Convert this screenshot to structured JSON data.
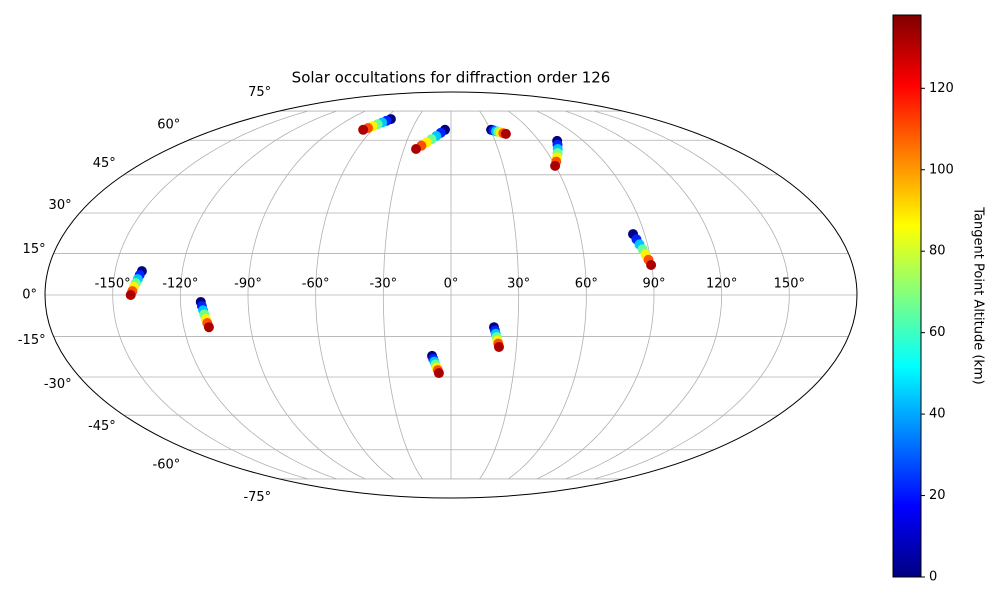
{
  "chart_data": {
    "type": "scatter",
    "projection": "mollweide",
    "title": "Solar occultations for diffraction order 126",
    "colorbar_label": "Tangent Point Altitude (km)",
    "colormap": "jet",
    "grid": true,
    "clim": [
      0,
      138
    ],
    "cticks": [
      0,
      20,
      40,
      60,
      80,
      100,
      120
    ],
    "xticks": [
      {
        "value": -150,
        "label": "-150°"
      },
      {
        "value": -120,
        "label": "-120°"
      },
      {
        "value": -90,
        "label": "-90°"
      },
      {
        "value": -60,
        "label": "-60°"
      },
      {
        "value": -30,
        "label": "-30°"
      },
      {
        "value": 0,
        "label": "0°"
      },
      {
        "value": 30,
        "label": "30°"
      },
      {
        "value": 60,
        "label": "60°"
      },
      {
        "value": 90,
        "label": "90°"
      },
      {
        "value": 120,
        "label": "120°"
      },
      {
        "value": 150,
        "label": "150°"
      }
    ],
    "yticks": [
      {
        "value": -75,
        "label": "-75°"
      },
      {
        "value": -60,
        "label": "-60°"
      },
      {
        "value": -45,
        "label": "-45°"
      },
      {
        "value": -30,
        "label": "-30°"
      },
      {
        "value": -15,
        "label": "-15°"
      },
      {
        "value": 0,
        "label": "0°"
      },
      {
        "value": 15,
        "label": "15°"
      },
      {
        "value": 30,
        "label": "30°"
      },
      {
        "value": 45,
        "label": "45°"
      },
      {
        "value": 60,
        "label": "60°"
      },
      {
        "value": 75,
        "label": "75°"
      }
    ],
    "series": [
      {
        "x": [
          -138,
          -138.7,
          -139.3,
          -140,
          -140.7,
          -141.3,
          -142
        ],
        "y": [
          8.6,
          7.2,
          5.7,
          4.3,
          2.9,
          1.4,
          0
        ],
        "values": [
          0,
          22,
          44,
          66,
          88,
          110,
          132
        ]
      },
      {
        "x": [
          -111,
          -110.6,
          -110.2,
          -109.9,
          -109.5,
          -109.1,
          -108.7
        ],
        "y": [
          -2.5,
          -4,
          -5.5,
          -7,
          -8.6,
          -10.1,
          -11.6
        ],
        "values": [
          0,
          22,
          44,
          66,
          88,
          110,
          132
        ]
      },
      {
        "x": [
          -53.4,
          -55.7,
          -57.9,
          -60.2,
          -62.5,
          -64.7,
          -67
        ],
        "y": [
          70.5,
          69.6,
          68.7,
          67.8,
          66.8,
          65.9,
          65
        ],
        "values": [
          0,
          22,
          44,
          66,
          88,
          110,
          132
        ]
      },
      {
        "x": [
          -4.6,
          -7.6,
          -10.5,
          -13.5,
          -16.4,
          -19.4,
          -22.3
        ],
        "y": [
          65,
          63.5,
          62,
          60.5,
          59,
          57.5,
          56
        ],
        "values": [
          0,
          22,
          44,
          66,
          88,
          110,
          132
        ]
      },
      {
        "x": [
          30.6,
          32.2,
          33.7,
          35.3,
          36.9,
          38.4,
          40
        ],
        "y": [
          65,
          64.7,
          64.3,
          64,
          63.7,
          63.3,
          63
        ],
        "values": [
          0,
          22,
          44,
          66,
          88,
          110,
          132
        ]
      },
      {
        "x": [
          72.3,
          70.2,
          68.1,
          66.1,
          64,
          61.9,
          59.8
        ],
        "y": [
          59.7,
          57.9,
          56,
          54.2,
          52.4,
          50.5,
          48.7
        ],
        "values": [
          0,
          22,
          44,
          66,
          88,
          110,
          132
        ]
      },
      {
        "x": [
          84.6,
          85.5,
          86.3,
          87.2,
          88,
          88.9,
          89.7
        ],
        "y": [
          22.1,
          20.2,
          18.3,
          16.5,
          14.6,
          12.7,
          10.8
        ],
        "values": [
          0,
          22,
          44,
          66,
          88,
          110,
          132
        ]
      },
      {
        "x": [
          -8.8,
          -8.3,
          -7.8,
          -7.3,
          -6.8,
          -6.3,
          -5.8
        ],
        "y": [
          -22.1,
          -23.2,
          -24.2,
          -25.3,
          -26.4,
          -27.4,
          -28.5
        ],
        "values": [
          0,
          22,
          44,
          66,
          88,
          110,
          132
        ]
      },
      {
        "x": [
          19.3,
          19.8,
          20.2,
          20.7,
          21.1,
          21.6,
          22
        ],
        "y": [
          -11.6,
          -12.8,
          -14,
          -15.2,
          -16.4,
          -17.6,
          -18.8
        ],
        "values": [
          0,
          22,
          44,
          66,
          88,
          110,
          132
        ]
      }
    ]
  }
}
